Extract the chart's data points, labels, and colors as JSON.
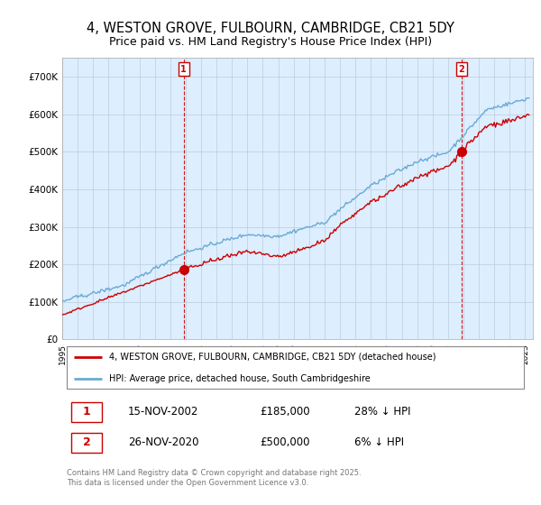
{
  "title": "4, WESTON GROVE, FULBOURN, CAMBRIDGE, CB21 5DY",
  "subtitle": "Price paid vs. HM Land Registry's House Price Index (HPI)",
  "title_fontsize": 10.5,
  "subtitle_fontsize": 9,
  "ylim": [
    0,
    750000
  ],
  "yticks": [
    0,
    100000,
    200000,
    300000,
    400000,
    500000,
    600000,
    700000
  ],
  "ytick_labels": [
    "£0",
    "£100K",
    "£200K",
    "£300K",
    "£400K",
    "£500K",
    "£600K",
    "£700K"
  ],
  "hpi_color": "#6aaad4",
  "price_color": "#cc0000",
  "dashed_color": "#cc0000",
  "sale1_label": "1",
  "sale2_label": "2",
  "sale1_date": "15-NOV-2002",
  "sale1_price": "£185,000",
  "sale1_hpi": "28% ↓ HPI",
  "sale2_date": "26-NOV-2020",
  "sale2_price": "£500,000",
  "sale2_hpi": "6% ↓ HPI",
  "legend1": "4, WESTON GROVE, FULBOURN, CAMBRIDGE, CB21 5DY (detached house)",
  "legend2": "HPI: Average price, detached house, South Cambridgeshire",
  "footer": "Contains HM Land Registry data © Crown copyright and database right 2025.\nThis data is licensed under the Open Government Licence v3.0.",
  "plot_bg_color": "#ddeeff",
  "grid_color": "#bbccdd"
}
